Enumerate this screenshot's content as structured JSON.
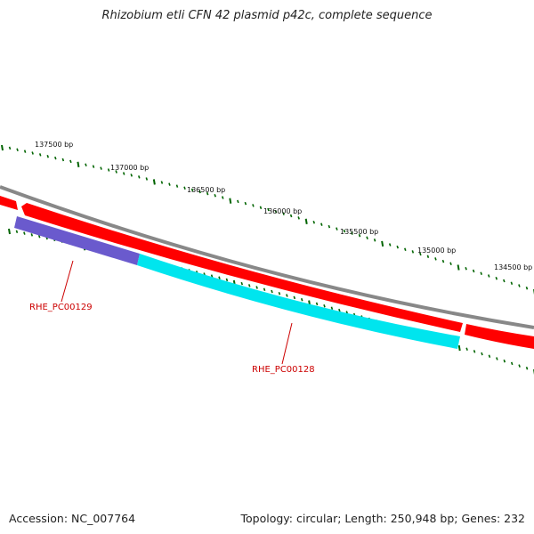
{
  "title": "Rhizobium etli CFN 42 plasmid p42c, complete sequence",
  "footer": {
    "accession": "Accession: NC_007764",
    "summary": "Topology: circular; Length: 250,948 bp; Genes: 232"
  },
  "ruler": {
    "labels": [
      "137500 bp",
      "137000 bp",
      "136500 bp",
      "136000 bp",
      "135500 bp",
      "135000 bp",
      "134500 bp"
    ]
  },
  "genes": [
    {
      "name": "RHE_PC00129",
      "color": "#6a5acd"
    },
    {
      "name": "RHE_PC00128",
      "color": "#00e5ee"
    }
  ],
  "colors": {
    "backbone": "#888888",
    "forward_features": "#ff0000",
    "ruler_ticks": "#006400",
    "gene_label": "#cc0000"
  }
}
